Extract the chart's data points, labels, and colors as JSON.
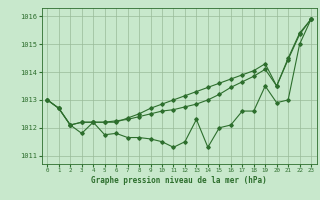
{
  "title": "Graphe pression niveau de la mer (hPa)",
  "bg_color": "#c8e8cc",
  "grid_color": "#99bb99",
  "line_color": "#2d6e2d",
  "xlim": [
    -0.5,
    23.5
  ],
  "ylim": [
    1010.7,
    1016.3
  ],
  "yticks": [
    1011,
    1012,
    1013,
    1014,
    1015,
    1016
  ],
  "xticks": [
    0,
    1,
    2,
    3,
    4,
    5,
    6,
    7,
    8,
    9,
    10,
    11,
    12,
    13,
    14,
    15,
    16,
    17,
    18,
    19,
    20,
    21,
    22,
    23
  ],
  "series1": [
    1013.0,
    1012.7,
    1012.1,
    1011.8,
    1012.2,
    1011.75,
    1011.8,
    1011.65,
    1011.65,
    1011.6,
    1011.5,
    1011.3,
    1011.5,
    1012.3,
    1011.3,
    1012.0,
    1012.1,
    1012.6,
    1012.6,
    1013.5,
    1012.9,
    1013.0,
    1015.0,
    1015.9
  ],
  "series2": [
    1013.0,
    1012.7,
    1012.1,
    1012.2,
    1012.2,
    1012.2,
    1012.25,
    1012.3,
    1012.4,
    1012.5,
    1012.6,
    1012.65,
    1012.75,
    1012.85,
    1013.0,
    1013.2,
    1013.45,
    1013.65,
    1013.85,
    1014.1,
    1013.5,
    1014.45,
    1015.35,
    1015.9
  ],
  "series3": [
    1013.0,
    1012.7,
    1012.1,
    1012.2,
    1012.2,
    1012.2,
    1012.2,
    1012.35,
    1012.5,
    1012.7,
    1012.85,
    1013.0,
    1013.15,
    1013.3,
    1013.45,
    1013.6,
    1013.75,
    1013.9,
    1014.05,
    1014.3,
    1013.5,
    1014.5,
    1015.4,
    1015.9
  ]
}
